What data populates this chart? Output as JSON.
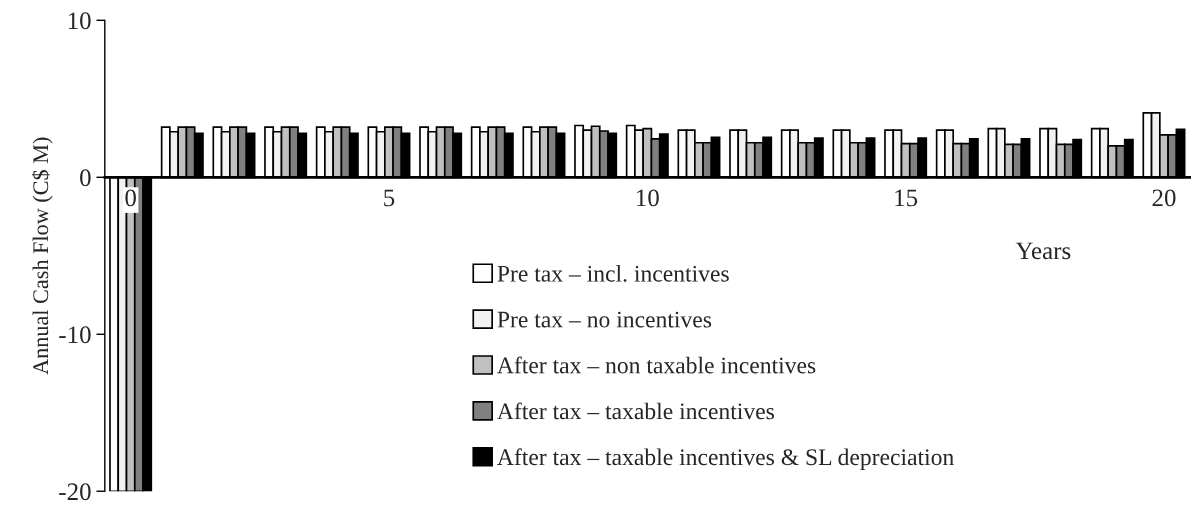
{
  "chart_data": {
    "type": "bar",
    "ylabel": "Annual Cash Flow (C$ M)",
    "xlabel": "Years",
    "categories": [
      "0",
      null,
      null,
      null,
      null,
      "5",
      null,
      null,
      null,
      null,
      "10",
      null,
      null,
      null,
      null,
      "15",
      null,
      null,
      null,
      null,
      "20"
    ],
    "series": [
      {
        "name": "Pre tax – incl. incentives",
        "color": "#ffffff",
        "values": [
          -20,
          3.2,
          3.2,
          3.2,
          3.2,
          3.2,
          3.2,
          3.2,
          3.2,
          3.3,
          3.3,
          3.0,
          3.0,
          3.0,
          3.0,
          3.0,
          3.0,
          3.1,
          3.1,
          3.1,
          4.1
        ]
      },
      {
        "name": "Pre tax – no incentives",
        "color": "#f2f2f2",
        "values": [
          -20,
          2.9,
          2.9,
          2.9,
          2.9,
          2.9,
          2.9,
          2.9,
          2.9,
          3.0,
          3.0,
          3.0,
          3.0,
          3.0,
          3.0,
          3.0,
          3.0,
          3.1,
          3.1,
          3.1,
          4.1
        ]
      },
      {
        "name": "After tax – non taxable incentives",
        "color": "#c0c0c0",
        "values": [
          -20,
          3.2,
          3.2,
          3.2,
          3.2,
          3.2,
          3.2,
          3.2,
          3.2,
          3.25,
          3.1,
          2.2,
          2.2,
          2.2,
          2.2,
          2.15,
          2.15,
          2.1,
          2.1,
          2.0,
          2.7
        ]
      },
      {
        "name": "After tax – taxable incentives",
        "color": "#808080",
        "values": [
          -20,
          3.2,
          3.2,
          3.2,
          3.2,
          3.2,
          3.2,
          3.2,
          3.2,
          2.95,
          2.45,
          2.2,
          2.2,
          2.2,
          2.2,
          2.15,
          2.15,
          2.1,
          2.1,
          2.0,
          2.7
        ]
      },
      {
        "name": "After tax – taxable incentives & SL depreciation",
        "color": "#000000",
        "values": [
          -20,
          2.8,
          2.8,
          2.8,
          2.8,
          2.8,
          2.8,
          2.8,
          2.8,
          2.8,
          2.75,
          2.55,
          2.55,
          2.5,
          2.5,
          2.5,
          2.45,
          2.45,
          2.4,
          2.4,
          3.05
        ]
      }
    ],
    "ylim": [
      -20,
      10
    ],
    "yticks": [
      -20,
      -10,
      0,
      10
    ],
    "grid": false,
    "legend": "bottom"
  }
}
